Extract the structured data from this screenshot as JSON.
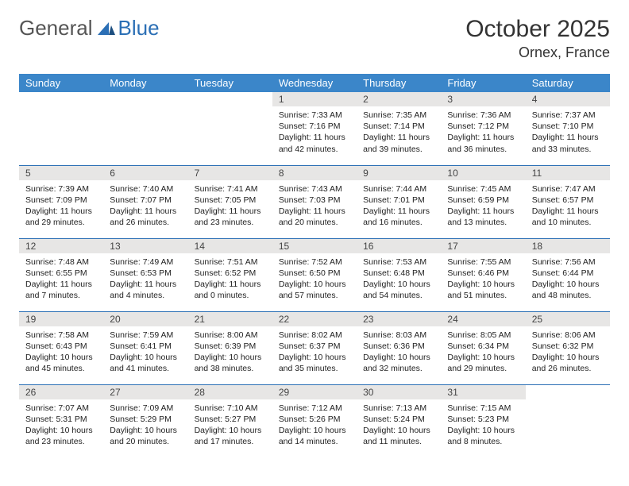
{
  "brand": {
    "text_general": "General",
    "text_blue": "Blue"
  },
  "header": {
    "month_title": "October 2025",
    "location": "Ornex, France"
  },
  "colors": {
    "header_bg": "#3b86c9",
    "border": "#2b6fb5",
    "daynum_bg": "#e7e6e5"
  },
  "weekdays": [
    "Sunday",
    "Monday",
    "Tuesday",
    "Wednesday",
    "Thursday",
    "Friday",
    "Saturday"
  ],
  "weeks": [
    [
      null,
      null,
      null,
      {
        "n": "1",
        "sunrise": "7:33 AM",
        "sunset": "7:16 PM",
        "daylight": "11 hours and 42 minutes."
      },
      {
        "n": "2",
        "sunrise": "7:35 AM",
        "sunset": "7:14 PM",
        "daylight": "11 hours and 39 minutes."
      },
      {
        "n": "3",
        "sunrise": "7:36 AM",
        "sunset": "7:12 PM",
        "daylight": "11 hours and 36 minutes."
      },
      {
        "n": "4",
        "sunrise": "7:37 AM",
        "sunset": "7:10 PM",
        "daylight": "11 hours and 33 minutes."
      }
    ],
    [
      {
        "n": "5",
        "sunrise": "7:39 AM",
        "sunset": "7:09 PM",
        "daylight": "11 hours and 29 minutes."
      },
      {
        "n": "6",
        "sunrise": "7:40 AM",
        "sunset": "7:07 PM",
        "daylight": "11 hours and 26 minutes."
      },
      {
        "n": "7",
        "sunrise": "7:41 AM",
        "sunset": "7:05 PM",
        "daylight": "11 hours and 23 minutes."
      },
      {
        "n": "8",
        "sunrise": "7:43 AM",
        "sunset": "7:03 PM",
        "daylight": "11 hours and 20 minutes."
      },
      {
        "n": "9",
        "sunrise": "7:44 AM",
        "sunset": "7:01 PM",
        "daylight": "11 hours and 16 minutes."
      },
      {
        "n": "10",
        "sunrise": "7:45 AM",
        "sunset": "6:59 PM",
        "daylight": "11 hours and 13 minutes."
      },
      {
        "n": "11",
        "sunrise": "7:47 AM",
        "sunset": "6:57 PM",
        "daylight": "11 hours and 10 minutes."
      }
    ],
    [
      {
        "n": "12",
        "sunrise": "7:48 AM",
        "sunset": "6:55 PM",
        "daylight": "11 hours and 7 minutes."
      },
      {
        "n": "13",
        "sunrise": "7:49 AM",
        "sunset": "6:53 PM",
        "daylight": "11 hours and 4 minutes."
      },
      {
        "n": "14",
        "sunrise": "7:51 AM",
        "sunset": "6:52 PM",
        "daylight": "11 hours and 0 minutes."
      },
      {
        "n": "15",
        "sunrise": "7:52 AM",
        "sunset": "6:50 PM",
        "daylight": "10 hours and 57 minutes."
      },
      {
        "n": "16",
        "sunrise": "7:53 AM",
        "sunset": "6:48 PM",
        "daylight": "10 hours and 54 minutes."
      },
      {
        "n": "17",
        "sunrise": "7:55 AM",
        "sunset": "6:46 PM",
        "daylight": "10 hours and 51 minutes."
      },
      {
        "n": "18",
        "sunrise": "7:56 AM",
        "sunset": "6:44 PM",
        "daylight": "10 hours and 48 minutes."
      }
    ],
    [
      {
        "n": "19",
        "sunrise": "7:58 AM",
        "sunset": "6:43 PM",
        "daylight": "10 hours and 45 minutes."
      },
      {
        "n": "20",
        "sunrise": "7:59 AM",
        "sunset": "6:41 PM",
        "daylight": "10 hours and 41 minutes."
      },
      {
        "n": "21",
        "sunrise": "8:00 AM",
        "sunset": "6:39 PM",
        "daylight": "10 hours and 38 minutes."
      },
      {
        "n": "22",
        "sunrise": "8:02 AM",
        "sunset": "6:37 PM",
        "daylight": "10 hours and 35 minutes."
      },
      {
        "n": "23",
        "sunrise": "8:03 AM",
        "sunset": "6:36 PM",
        "daylight": "10 hours and 32 minutes."
      },
      {
        "n": "24",
        "sunrise": "8:05 AM",
        "sunset": "6:34 PM",
        "daylight": "10 hours and 29 minutes."
      },
      {
        "n": "25",
        "sunrise": "8:06 AM",
        "sunset": "6:32 PM",
        "daylight": "10 hours and 26 minutes."
      }
    ],
    [
      {
        "n": "26",
        "sunrise": "7:07 AM",
        "sunset": "5:31 PM",
        "daylight": "10 hours and 23 minutes."
      },
      {
        "n": "27",
        "sunrise": "7:09 AM",
        "sunset": "5:29 PM",
        "daylight": "10 hours and 20 minutes."
      },
      {
        "n": "28",
        "sunrise": "7:10 AM",
        "sunset": "5:27 PM",
        "daylight": "10 hours and 17 minutes."
      },
      {
        "n": "29",
        "sunrise": "7:12 AM",
        "sunset": "5:26 PM",
        "daylight": "10 hours and 14 minutes."
      },
      {
        "n": "30",
        "sunrise": "7:13 AM",
        "sunset": "5:24 PM",
        "daylight": "10 hours and 11 minutes."
      },
      {
        "n": "31",
        "sunrise": "7:15 AM",
        "sunset": "5:23 PM",
        "daylight": "10 hours and 8 minutes."
      },
      null
    ]
  ],
  "labels": {
    "sunrise": "Sunrise:",
    "sunset": "Sunset:",
    "daylight": "Daylight:"
  }
}
